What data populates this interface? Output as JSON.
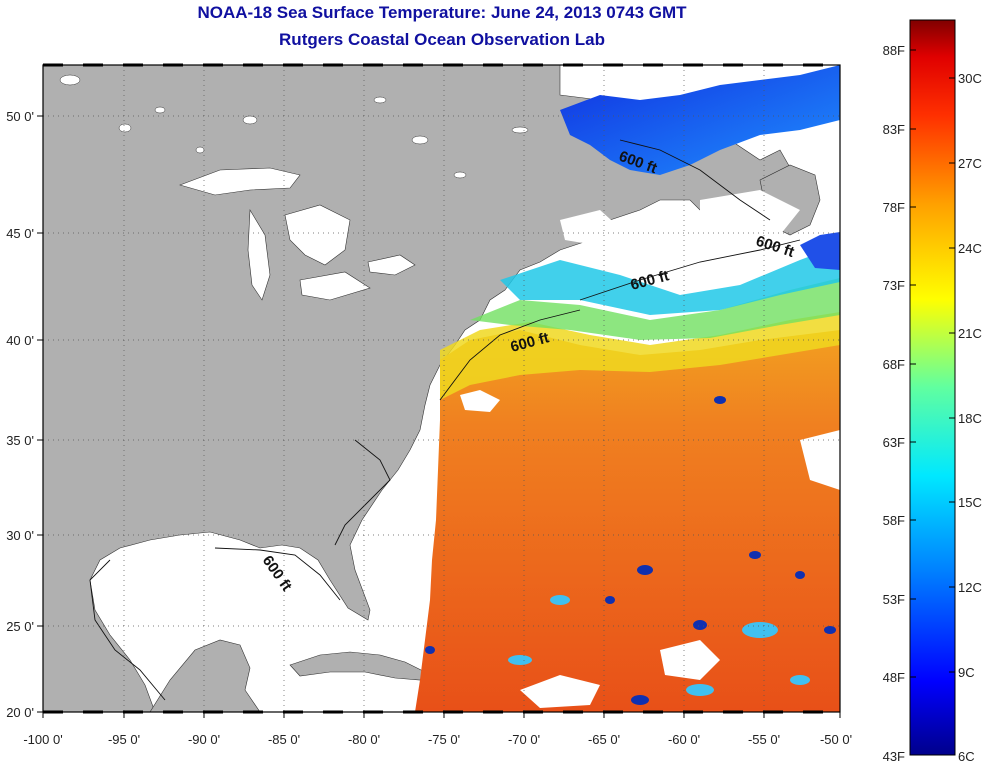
{
  "title": "NOAA-18 Sea Surface Temperature:  June 24, 2013 0743 GMT",
  "subtitle": "Rutgers Coastal Ocean Observation Lab",
  "longitude_labels": [
    "-100 0'",
    "-95 0'",
    "-90 0'",
    "-85 0'",
    "-80 0'",
    "-75 0'",
    "-70 0'",
    "-65 0'",
    "-60 0'",
    "-55 0'",
    "-50 0'"
  ],
  "latitude_labels": [
    "50 0'",
    "45 0'",
    "40 0'",
    "35 0'",
    "30 0'",
    "25 0'",
    "20 0'"
  ],
  "contour_labels": [
    "600 ft",
    "600 ft",
    "600 ft",
    "600 ft",
    "600 ft"
  ],
  "colorbar": {
    "fahrenheit": [
      "88F",
      "83F",
      "78F",
      "73F",
      "68F",
      "63F",
      "58F",
      "53F",
      "48F",
      "43F"
    ],
    "celsius": [
      "30C",
      "27C",
      "24C",
      "21C",
      "18C",
      "15C",
      "12C",
      "9C",
      "6C"
    ],
    "range_f": [
      43,
      90
    ],
    "colors": [
      "#00008b",
      "#0000ff",
      "#0080ff",
      "#00e0ff",
      "#40ffbf",
      "#c0ff40",
      "#ffff00",
      "#ffa000",
      "#ff4000",
      "#ff0000",
      "#8b0000"
    ]
  },
  "colors": {
    "land": "#b0b0b0",
    "no_data": "#ffffff",
    "title_text": "#1010a0"
  }
}
